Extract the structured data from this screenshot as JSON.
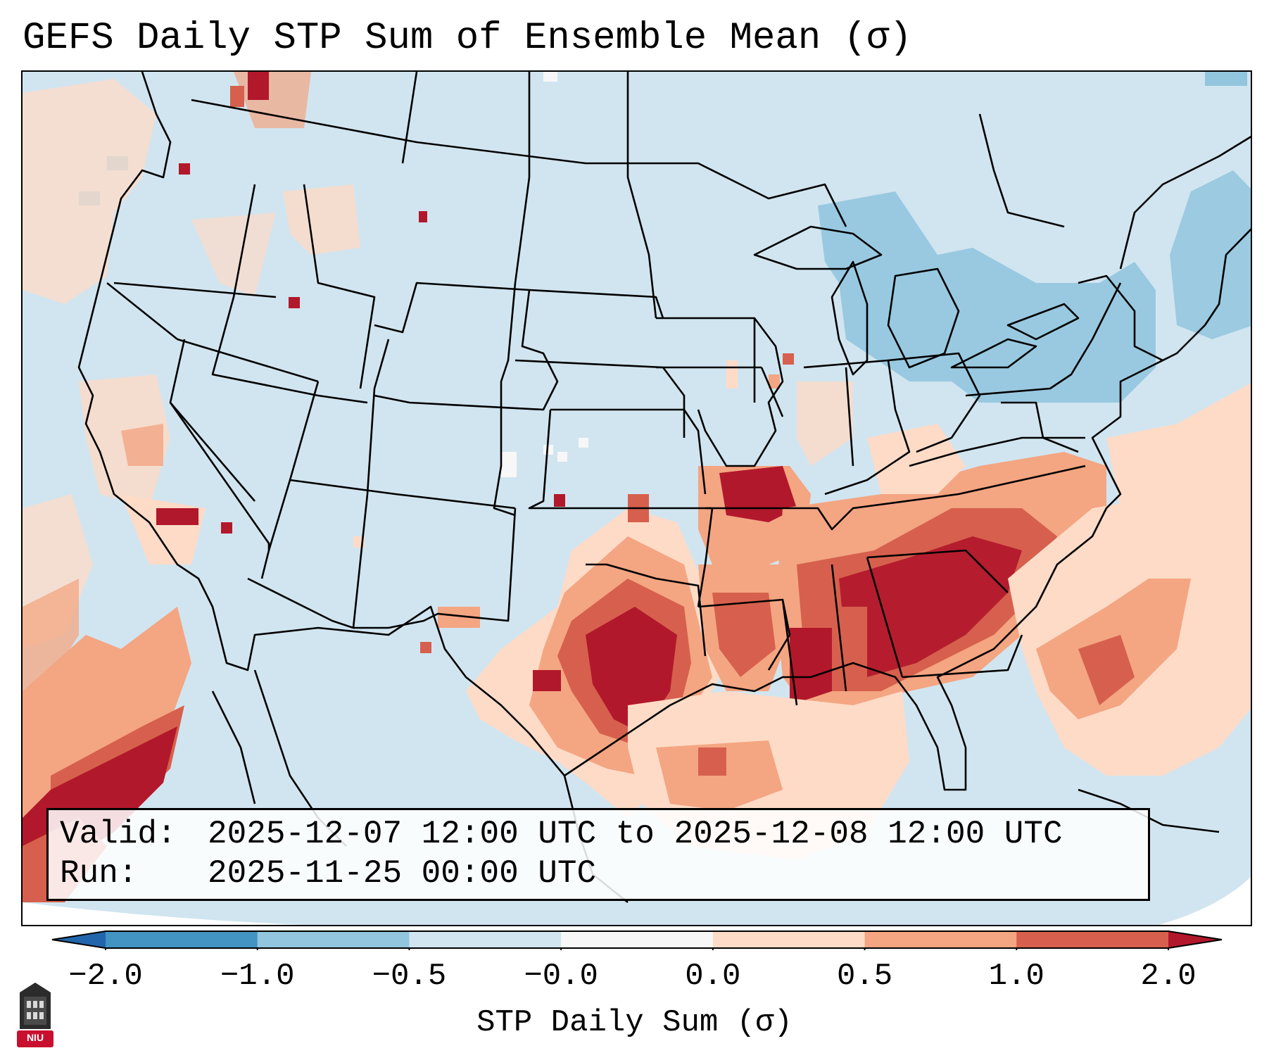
{
  "title": "GEFS Daily STP Sum of Ensemble Mean (σ)",
  "info": {
    "valid_key": "Valid:",
    "valid_value": "2025-12-07 12:00 UTC to 2025-12-08 12:00 UTC",
    "run_key": "Run:",
    "run_value": "2025-11-25 00:00 UTC"
  },
  "colorbar": {
    "label": "STP Daily Sum (σ)",
    "ticks": [
      "−2.0",
      "−1.0",
      "−0.5",
      "−0.0",
      "0.0",
      "0.5",
      "1.0",
      "2.0"
    ],
    "colors": [
      "#2166ac",
      "#4393c3",
      "#92c5de",
      "#d1e5f0",
      "#f7f7f7",
      "#fddbc7",
      "#f4a582",
      "#d6604d",
      "#b2182b"
    ]
  },
  "logo": {
    "text": "NIU",
    "name": "niu-logo"
  },
  "map": {
    "base_category": 3,
    "regions": [
      {
        "name": "southern-plains-core",
        "category": 8
      },
      {
        "name": "southeast-core",
        "category": 8
      },
      {
        "name": "ozarks-core",
        "category": 8
      },
      {
        "name": "gulf-coast-moderate",
        "category": 6
      },
      {
        "name": "atlantic-moderate",
        "category": 6
      },
      {
        "name": "great-lakes-negative",
        "category": 2
      },
      {
        "name": "northeast-negative",
        "category": 2
      },
      {
        "name": "pacific-southwest-core",
        "category": 8
      }
    ]
  }
}
